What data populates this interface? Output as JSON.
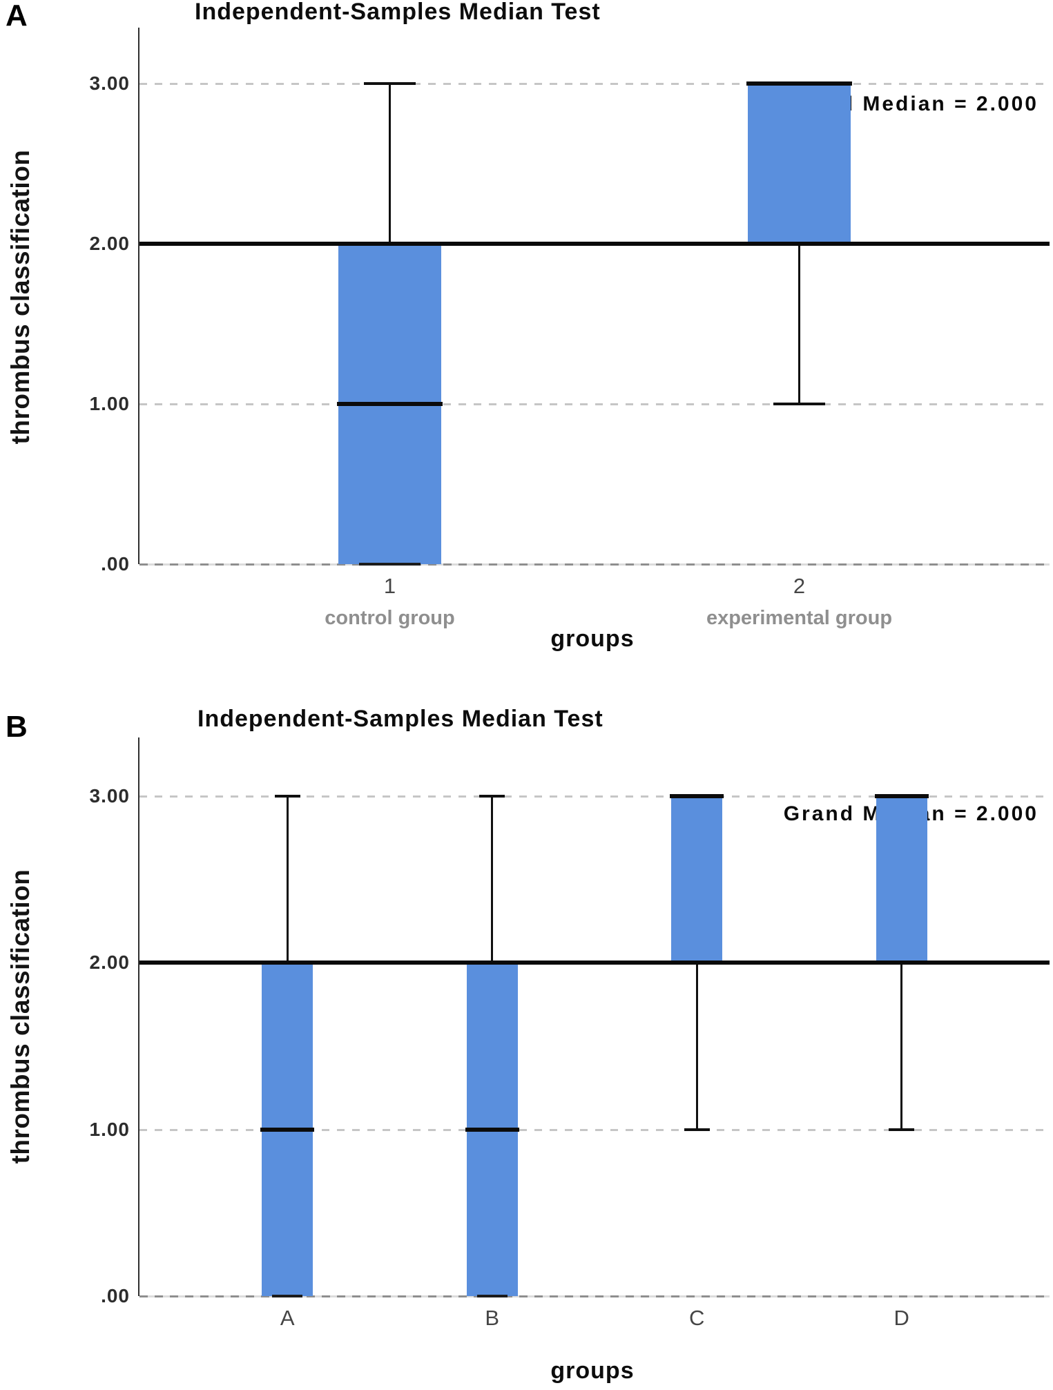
{
  "page": {
    "background": "#ffffff"
  },
  "panels": [
    {
      "figure_label": "A"
    },
    {
      "figure_label": "B"
    }
  ],
  "colors": {
    "box_fill": "#5a8fdd",
    "grand_median_line": "#0a0a0a",
    "gridline": "#c6c6c6",
    "axis": "#2f2f2f",
    "whisker": "#101010"
  },
  "chart_data": [
    {
      "type": "boxplot",
      "title": "Independent-Samples Median Test",
      "ylabel": "thrombus classification",
      "xlabel": "groups",
      "annotation": "Grand Median = 2.000",
      "grand_median": 2.0,
      "ylim": [
        0,
        3.35
      ],
      "grid": "dashed-horizontal",
      "yticks": [
        {
          "value": 3,
          "label": "3.00"
        },
        {
          "value": 2,
          "label": "2.00"
        },
        {
          "value": 1,
          "label": "1.00"
        },
        {
          "value": 0,
          "label": ".00"
        }
      ],
      "groups": [
        {
          "tick": "1",
          "label": "control group",
          "q1": 0,
          "q3": 2,
          "median": 1,
          "min": 0,
          "max": 3
        },
        {
          "tick": "2",
          "label": "experimental group",
          "q1": 2,
          "q3": 3,
          "median": 3,
          "min": 1,
          "max": 3
        }
      ]
    },
    {
      "type": "boxplot",
      "title": "Independent-Samples Median Test",
      "ylabel": "thrombus classification",
      "xlabel": "groups",
      "annotation": "Grand Median = 2.000",
      "grand_median": 2.0,
      "ylim": [
        0,
        3.35
      ],
      "grid": "dashed-horizontal",
      "yticks": [
        {
          "value": 3,
          "label": "3.00"
        },
        {
          "value": 2,
          "label": "2.00"
        },
        {
          "value": 1,
          "label": "1.00"
        },
        {
          "value": 0,
          "label": ".00"
        }
      ],
      "groups": [
        {
          "tick": "A",
          "q1": 0,
          "q3": 2,
          "median": 1,
          "min": 0,
          "max": 3
        },
        {
          "tick": "B",
          "q1": 0,
          "q3": 2,
          "median": 1,
          "min": 0,
          "max": 3
        },
        {
          "tick": "C",
          "q1": 2,
          "q3": 3,
          "median": 3,
          "min": 1,
          "max": 3
        },
        {
          "tick": "D",
          "q1": 2,
          "q3": 3,
          "median": 3,
          "min": 1,
          "max": 3
        }
      ]
    }
  ]
}
